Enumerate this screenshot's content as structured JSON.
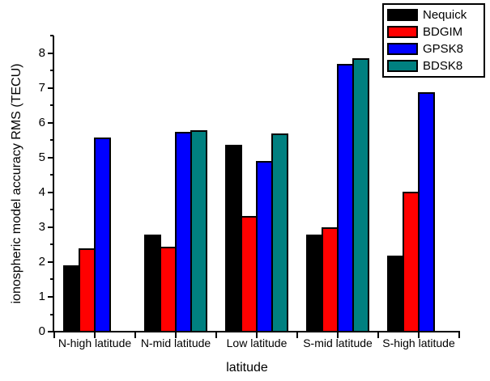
{
  "chart_data": {
    "type": "bar",
    "title": "",
    "xlabel": "latitude",
    "ylabel": "ionospheric model accuracy RMS (TECU)",
    "ylim": [
      0,
      8.5
    ],
    "ytick_major_step": 1,
    "ytick_minor_step": 0.5,
    "ytick_labels": [
      "0",
      "1",
      "2",
      "3",
      "4",
      "5",
      "6",
      "7",
      "8"
    ],
    "grid": false,
    "legend_position": "top-right",
    "categories": [
      "N-high latitude",
      "N-mid latitude",
      "Low latitude",
      "S-mid latitude",
      "S-high latitude"
    ],
    "series": [
      {
        "name": "Nequick",
        "color": "#000000",
        "values": [
          1.93,
          2.82,
          5.4,
          2.82,
          2.2
        ]
      },
      {
        "name": "BDGIM",
        "color": "#ff0000",
        "values": [
          2.42,
          2.47,
          3.35,
          3.02,
          4.05
        ]
      },
      {
        "name": "GPSK8",
        "color": "#0000ff",
        "values": [
          5.6,
          5.75,
          4.93,
          7.7,
          6.9
        ]
      },
      {
        "name": "BDSK8",
        "color": "#008080",
        "values": [
          null,
          5.8,
          5.72,
          7.88,
          null
        ]
      }
    ],
    "axis_color": "#000000",
    "background_color": "#ffffff"
  }
}
